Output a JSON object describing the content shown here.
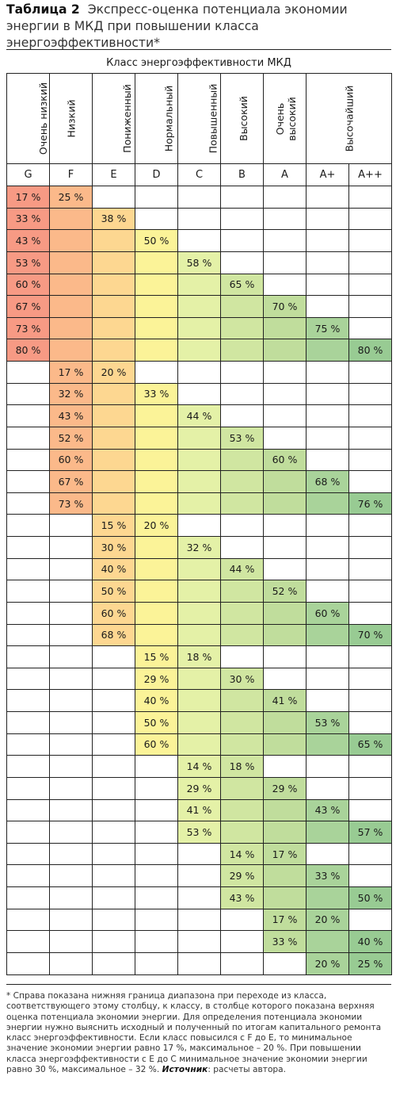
{
  "caption": {
    "number": "Таблица 2",
    "text": "Экспресс-оценка потенциала экономии энергии в МКД при повышении класса энергоэффективности*"
  },
  "table": {
    "group_header": "Класс энергоэффективности МКД",
    "columns": [
      {
        "code": "G",
        "name": "Очень низкий",
        "color": "#f79a84"
      },
      {
        "code": "F",
        "name": "Низкий",
        "color": "#fbb98a"
      },
      {
        "code": "E",
        "name": "Пониженный",
        "color": "#fdd791"
      },
      {
        "code": "D",
        "name": "Нормальный",
        "color": "#fbf398"
      },
      {
        "code": "C",
        "name": "Повышенный",
        "color": "#e4f1a7"
      },
      {
        "code": "B",
        "name": "Высокий",
        "color": "#d0e6a1"
      },
      {
        "code": "A",
        "name": "Очень\nвысокий",
        "color": "#c0dd9c"
      },
      {
        "code": "A+",
        "name": "Высочайший",
        "color": "#a9d39a"
      },
      {
        "code": "A++",
        "name": "Высочайший",
        "color": "#98cb93"
      }
    ],
    "rows": [
      {
        "start": 0,
        "end": 1,
        "low": "17 %",
        "high": "25 %"
      },
      {
        "start": 0,
        "end": 2,
        "low": "33 %",
        "high": "38 %"
      },
      {
        "start": 0,
        "end": 3,
        "low": "43 %",
        "high": "50 %"
      },
      {
        "start": 0,
        "end": 4,
        "low": "53 %",
        "high": "58 %"
      },
      {
        "start": 0,
        "end": 5,
        "low": "60 %",
        "high": "65 %"
      },
      {
        "start": 0,
        "end": 6,
        "low": "67 %",
        "high": "70 %"
      },
      {
        "start": 0,
        "end": 7,
        "low": "73 %",
        "high": "75 %"
      },
      {
        "start": 0,
        "end": 8,
        "low": "80 %",
        "high": "80 %"
      },
      {
        "start": 1,
        "end": 2,
        "low": "17 %",
        "high": "20 %"
      },
      {
        "start": 1,
        "end": 3,
        "low": "32 %",
        "high": "33 %"
      },
      {
        "start": 1,
        "end": 4,
        "low": "43 %",
        "high": "44 %"
      },
      {
        "start": 1,
        "end": 5,
        "low": "52 %",
        "high": "53 %"
      },
      {
        "start": 1,
        "end": 6,
        "low": "60 %",
        "high": "60 %"
      },
      {
        "start": 1,
        "end": 7,
        "low": "67 %",
        "high": "68 %"
      },
      {
        "start": 1,
        "end": 8,
        "low": "73 %",
        "high": "76 %"
      },
      {
        "start": 2,
        "end": 3,
        "low": "15 %",
        "high": "20 %"
      },
      {
        "start": 2,
        "end": 4,
        "low": "30 %",
        "high": "32 %"
      },
      {
        "start": 2,
        "end": 5,
        "low": "40 %",
        "high": "44 %"
      },
      {
        "start": 2,
        "end": 6,
        "low": "50 %",
        "high": "52 %"
      },
      {
        "start": 2,
        "end": 7,
        "low": "60 %",
        "high": "60 %"
      },
      {
        "start": 2,
        "end": 8,
        "low": "68 %",
        "high": "70 %"
      },
      {
        "start": 3,
        "end": 4,
        "low": "15 %",
        "high": "18 %"
      },
      {
        "start": 3,
        "end": 5,
        "low": "29 %",
        "high": "30 %"
      },
      {
        "start": 3,
        "end": 6,
        "low": "40 %",
        "high": "41 %"
      },
      {
        "start": 3,
        "end": 7,
        "low": "50 %",
        "high": "53 %"
      },
      {
        "start": 3,
        "end": 8,
        "low": "60 %",
        "high": "65 %"
      },
      {
        "start": 4,
        "end": 5,
        "low": "14 %",
        "high": "18 %"
      },
      {
        "start": 4,
        "end": 6,
        "low": "29 %",
        "high": "29 %"
      },
      {
        "start": 4,
        "end": 7,
        "low": "41 %",
        "high": "43 %"
      },
      {
        "start": 4,
        "end": 8,
        "low": "53 %",
        "high": "57 %"
      },
      {
        "start": 5,
        "end": 6,
        "low": "14 %",
        "high": "17 %"
      },
      {
        "start": 5,
        "end": 7,
        "low": "29 %",
        "high": "33 %"
      },
      {
        "start": 5,
        "end": 8,
        "low": "43 %",
        "high": "50 %"
      },
      {
        "start": 6,
        "end": 7,
        "low": "17 %",
        "high": "20 %"
      },
      {
        "start": 6,
        "end": 8,
        "low": "33 %",
        "high": "40 %"
      },
      {
        "start": 7,
        "end": 8,
        "low": "20 %",
        "high": "25 %"
      }
    ]
  },
  "footnote": {
    "text": "* Справа показана нижняя граница диапазона при переходе из класса, соответствующего этому столбцу, к классу, в столбце которого показана верхняя оценка потенциала экономии энергии. Для определения потенциала экономии энергии нужно выяснить исходный и полученный по итогам капитального ремонта класс энергоэффективности. Если класс повысился с F до E, то минимальное значение экономии энергии равно 17 %, максимальное – 20 %. При повышении класса энергоэффективности с E до C минимальное значение экономии энергии равно 30 %, максимальное – 32 %.",
    "source_label": "Источник",
    "source_text": ": расчеты автора."
  }
}
